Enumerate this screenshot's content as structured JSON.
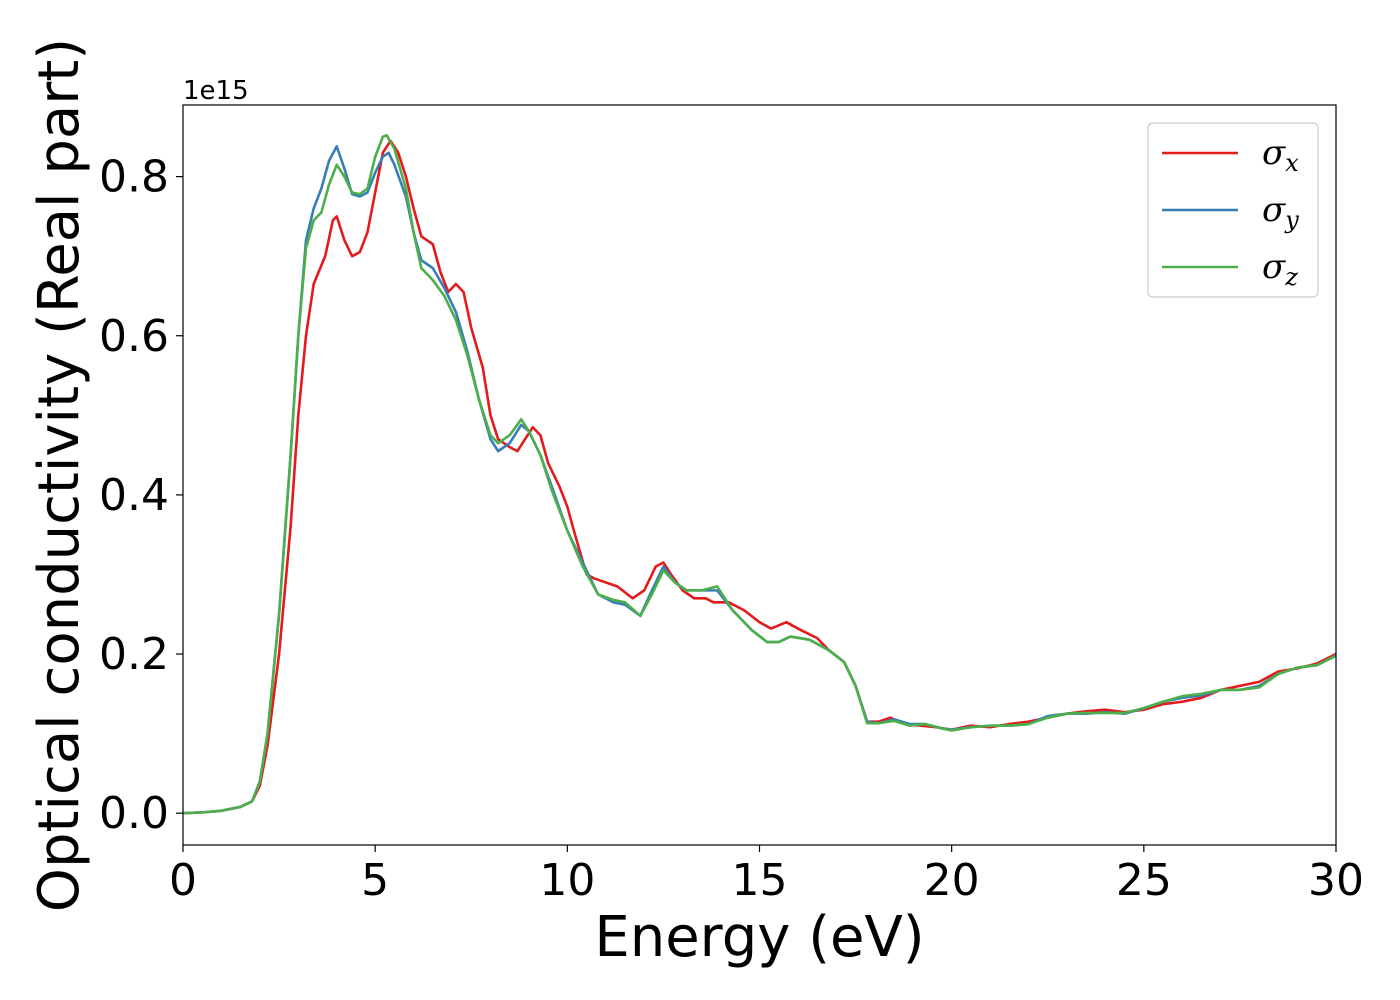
{
  "chart_data": {
    "type": "line",
    "title": "",
    "xlabel": "Energy (eV)",
    "ylabel": "Optical conductivity (Real part)",
    "y_offset_label": "1e15",
    "xlim": [
      0,
      30
    ],
    "ylim": [
      -0.04,
      0.89
    ],
    "xticks": [
      0,
      5,
      10,
      15,
      20,
      25,
      30
    ],
    "xtick_labels": [
      "0",
      "5",
      "10",
      "15",
      "20",
      "25",
      "30"
    ],
    "yticks": [
      0.0,
      0.2,
      0.4,
      0.6,
      0.8
    ],
    "ytick_labels": [
      "0.0",
      "0.2",
      "0.4",
      "0.6",
      "0.8"
    ],
    "grid": false,
    "legend_position": "top-right",
    "series": [
      {
        "name": "σ",
        "subscript": "x",
        "color": "#e41a1c",
        "points": [
          [
            0,
            0
          ],
          [
            0.5,
            0.001
          ],
          [
            1.0,
            0.003
          ],
          [
            1.5,
            0.008
          ],
          [
            1.8,
            0.015
          ],
          [
            2.0,
            0.035
          ],
          [
            2.2,
            0.085
          ],
          [
            2.5,
            0.2
          ],
          [
            2.8,
            0.36
          ],
          [
            3.0,
            0.5
          ],
          [
            3.2,
            0.6
          ],
          [
            3.4,
            0.665
          ],
          [
            3.7,
            0.7
          ],
          [
            3.9,
            0.745
          ],
          [
            4.0,
            0.75
          ],
          [
            4.2,
            0.72
          ],
          [
            4.4,
            0.7
          ],
          [
            4.6,
            0.705
          ],
          [
            4.8,
            0.73
          ],
          [
            5.0,
            0.78
          ],
          [
            5.2,
            0.83
          ],
          [
            5.4,
            0.845
          ],
          [
            5.6,
            0.83
          ],
          [
            5.8,
            0.8
          ],
          [
            6.0,
            0.76
          ],
          [
            6.2,
            0.725
          ],
          [
            6.5,
            0.715
          ],
          [
            6.7,
            0.68
          ],
          [
            6.9,
            0.655
          ],
          [
            7.1,
            0.665
          ],
          [
            7.3,
            0.655
          ],
          [
            7.5,
            0.61
          ],
          [
            7.8,
            0.56
          ],
          [
            8.0,
            0.5
          ],
          [
            8.2,
            0.47
          ],
          [
            8.5,
            0.46
          ],
          [
            8.7,
            0.455
          ],
          [
            8.9,
            0.47
          ],
          [
            9.1,
            0.485
          ],
          [
            9.3,
            0.475
          ],
          [
            9.5,
            0.44
          ],
          [
            9.8,
            0.41
          ],
          [
            10.0,
            0.385
          ],
          [
            10.2,
            0.35
          ],
          [
            10.5,
            0.3
          ],
          [
            10.7,
            0.295
          ],
          [
            11.0,
            0.29
          ],
          [
            11.3,
            0.285
          ],
          [
            11.7,
            0.27
          ],
          [
            12.0,
            0.28
          ],
          [
            12.3,
            0.31
          ],
          [
            12.5,
            0.315
          ],
          [
            12.7,
            0.3
          ],
          [
            13.0,
            0.28
          ],
          [
            13.3,
            0.27
          ],
          [
            13.6,
            0.27
          ],
          [
            13.8,
            0.265
          ],
          [
            14.2,
            0.265
          ],
          [
            14.6,
            0.255
          ],
          [
            15.0,
            0.24
          ],
          [
            15.3,
            0.232
          ],
          [
            15.7,
            0.24
          ],
          [
            16.0,
            0.232
          ],
          [
            16.5,
            0.22
          ],
          [
            16.8,
            0.205
          ],
          [
            17.2,
            0.19
          ],
          [
            17.5,
            0.16
          ],
          [
            17.8,
            0.115
          ],
          [
            18.1,
            0.115
          ],
          [
            18.4,
            0.12
          ],
          [
            18.8,
            0.112
          ],
          [
            19.2,
            0.11
          ],
          [
            19.6,
            0.108
          ],
          [
            20.0,
            0.105
          ],
          [
            20.5,
            0.11
          ],
          [
            21.0,
            0.108
          ],
          [
            21.5,
            0.112
          ],
          [
            22.0,
            0.115
          ],
          [
            22.5,
            0.12
          ],
          [
            23.0,
            0.125
          ],
          [
            23.5,
            0.128
          ],
          [
            24.0,
            0.13
          ],
          [
            24.5,
            0.127
          ],
          [
            25.0,
            0.13
          ],
          [
            25.5,
            0.137
          ],
          [
            26.0,
            0.14
          ],
          [
            26.5,
            0.145
          ],
          [
            27.0,
            0.155
          ],
          [
            27.5,
            0.16
          ],
          [
            28.0,
            0.165
          ],
          [
            28.5,
            0.178
          ],
          [
            29.0,
            0.182
          ],
          [
            29.5,
            0.188
          ],
          [
            30.0,
            0.2
          ]
        ]
      },
      {
        "name": "σ",
        "subscript": "y",
        "color": "#377eb8",
        "points": [
          [
            0,
            0
          ],
          [
            0.5,
            0.001
          ],
          [
            1.0,
            0.003
          ],
          [
            1.5,
            0.008
          ],
          [
            1.8,
            0.015
          ],
          [
            2.0,
            0.04
          ],
          [
            2.2,
            0.1
          ],
          [
            2.5,
            0.25
          ],
          [
            2.8,
            0.45
          ],
          [
            3.0,
            0.6
          ],
          [
            3.2,
            0.72
          ],
          [
            3.4,
            0.76
          ],
          [
            3.6,
            0.785
          ],
          [
            3.8,
            0.82
          ],
          [
            4.0,
            0.838
          ],
          [
            4.2,
            0.81
          ],
          [
            4.4,
            0.778
          ],
          [
            4.6,
            0.775
          ],
          [
            4.8,
            0.78
          ],
          [
            5.0,
            0.805
          ],
          [
            5.2,
            0.825
          ],
          [
            5.35,
            0.83
          ],
          [
            5.5,
            0.815
          ],
          [
            5.8,
            0.775
          ],
          [
            6.0,
            0.73
          ],
          [
            6.2,
            0.695
          ],
          [
            6.5,
            0.685
          ],
          [
            6.8,
            0.66
          ],
          [
            7.1,
            0.63
          ],
          [
            7.4,
            0.58
          ],
          [
            7.7,
            0.52
          ],
          [
            8.0,
            0.47
          ],
          [
            8.2,
            0.455
          ],
          [
            8.5,
            0.465
          ],
          [
            8.8,
            0.488
          ],
          [
            9.0,
            0.48
          ],
          [
            9.3,
            0.45
          ],
          [
            9.6,
            0.41
          ],
          [
            10.0,
            0.355
          ],
          [
            10.4,
            0.315
          ],
          [
            10.8,
            0.275
          ],
          [
            11.2,
            0.265
          ],
          [
            11.5,
            0.262
          ],
          [
            11.9,
            0.248
          ],
          [
            12.2,
            0.28
          ],
          [
            12.5,
            0.31
          ],
          [
            12.8,
            0.29
          ],
          [
            13.1,
            0.28
          ],
          [
            13.5,
            0.28
          ],
          [
            13.9,
            0.28
          ],
          [
            14.3,
            0.255
          ],
          [
            14.8,
            0.23
          ],
          [
            15.2,
            0.215
          ],
          [
            15.5,
            0.215
          ],
          [
            15.8,
            0.222
          ],
          [
            16.3,
            0.218
          ],
          [
            16.8,
            0.205
          ],
          [
            17.2,
            0.19
          ],
          [
            17.5,
            0.16
          ],
          [
            17.8,
            0.115
          ],
          [
            18.1,
            0.113
          ],
          [
            18.5,
            0.118
          ],
          [
            18.9,
            0.112
          ],
          [
            19.3,
            0.112
          ],
          [
            19.8,
            0.106
          ],
          [
            20.0,
            0.105
          ],
          [
            20.5,
            0.108
          ],
          [
            21.0,
            0.11
          ],
          [
            21.5,
            0.11
          ],
          [
            22.0,
            0.112
          ],
          [
            22.5,
            0.122
          ],
          [
            23.0,
            0.125
          ],
          [
            23.5,
            0.125
          ],
          [
            24.0,
            0.127
          ],
          [
            24.5,
            0.125
          ],
          [
            25.0,
            0.132
          ],
          [
            25.5,
            0.14
          ],
          [
            26.0,
            0.145
          ],
          [
            26.5,
            0.148
          ],
          [
            27.0,
            0.155
          ],
          [
            27.5,
            0.155
          ],
          [
            28.0,
            0.16
          ],
          [
            28.5,
            0.175
          ],
          [
            29.0,
            0.183
          ],
          [
            29.5,
            0.186
          ],
          [
            30.0,
            0.198
          ]
        ]
      },
      {
        "name": "σ",
        "subscript": "z",
        "color": "#4daf4a",
        "points": [
          [
            0,
            0
          ],
          [
            0.5,
            0.001
          ],
          [
            1.0,
            0.003
          ],
          [
            1.5,
            0.008
          ],
          [
            1.8,
            0.015
          ],
          [
            2.0,
            0.04
          ],
          [
            2.2,
            0.1
          ],
          [
            2.5,
            0.25
          ],
          [
            2.8,
            0.45
          ],
          [
            3.0,
            0.6
          ],
          [
            3.2,
            0.71
          ],
          [
            3.4,
            0.745
          ],
          [
            3.6,
            0.755
          ],
          [
            3.8,
            0.79
          ],
          [
            4.0,
            0.815
          ],
          [
            4.2,
            0.8
          ],
          [
            4.4,
            0.78
          ],
          [
            4.6,
            0.778
          ],
          [
            4.8,
            0.785
          ],
          [
            5.0,
            0.825
          ],
          [
            5.2,
            0.85
          ],
          [
            5.3,
            0.852
          ],
          [
            5.5,
            0.835
          ],
          [
            5.8,
            0.785
          ],
          [
            6.0,
            0.73
          ],
          [
            6.2,
            0.685
          ],
          [
            6.5,
            0.67
          ],
          [
            6.8,
            0.65
          ],
          [
            7.1,
            0.62
          ],
          [
            7.4,
            0.575
          ],
          [
            7.7,
            0.52
          ],
          [
            8.0,
            0.475
          ],
          [
            8.2,
            0.465
          ],
          [
            8.5,
            0.475
          ],
          [
            8.8,
            0.495
          ],
          [
            9.0,
            0.48
          ],
          [
            9.3,
            0.45
          ],
          [
            9.6,
            0.405
          ],
          [
            10.0,
            0.355
          ],
          [
            10.4,
            0.31
          ],
          [
            10.8,
            0.275
          ],
          [
            11.2,
            0.268
          ],
          [
            11.5,
            0.265
          ],
          [
            11.9,
            0.248
          ],
          [
            12.2,
            0.275
          ],
          [
            12.5,
            0.305
          ],
          [
            12.8,
            0.29
          ],
          [
            13.1,
            0.28
          ],
          [
            13.5,
            0.28
          ],
          [
            13.9,
            0.285
          ],
          [
            14.3,
            0.255
          ],
          [
            14.8,
            0.23
          ],
          [
            15.2,
            0.215
          ],
          [
            15.5,
            0.215
          ],
          [
            15.8,
            0.222
          ],
          [
            16.3,
            0.218
          ],
          [
            16.8,
            0.205
          ],
          [
            17.2,
            0.19
          ],
          [
            17.5,
            0.16
          ],
          [
            17.8,
            0.113
          ],
          [
            18.1,
            0.113
          ],
          [
            18.5,
            0.116
          ],
          [
            18.9,
            0.11
          ],
          [
            19.3,
            0.112
          ],
          [
            19.8,
            0.106
          ],
          [
            20.0,
            0.104
          ],
          [
            20.5,
            0.108
          ],
          [
            21.0,
            0.11
          ],
          [
            21.5,
            0.11
          ],
          [
            22.0,
            0.112
          ],
          [
            22.5,
            0.12
          ],
          [
            23.0,
            0.125
          ],
          [
            23.5,
            0.126
          ],
          [
            24.0,
            0.126
          ],
          [
            24.5,
            0.126
          ],
          [
            25.0,
            0.132
          ],
          [
            25.5,
            0.14
          ],
          [
            26.0,
            0.147
          ],
          [
            26.5,
            0.15
          ],
          [
            27.0,
            0.155
          ],
          [
            27.5,
            0.155
          ],
          [
            28.0,
            0.158
          ],
          [
            28.5,
            0.175
          ],
          [
            29.0,
            0.183
          ],
          [
            29.5,
            0.186
          ],
          [
            30.0,
            0.198
          ]
        ]
      }
    ]
  }
}
